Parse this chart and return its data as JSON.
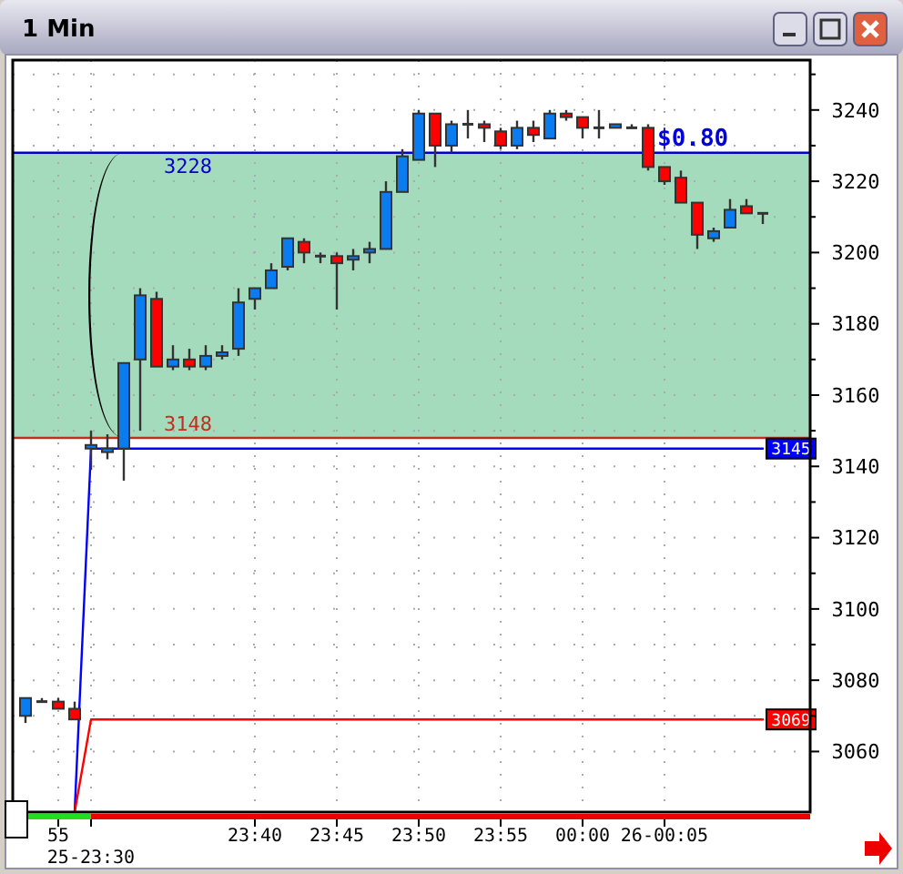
{
  "chart_data": {
    "type": "candlestick",
    "title": "1 Min",
    "categories": [
      null,
      null,
      "55",
      null,
      "25-23:30",
      null,
      null,
      null,
      null,
      null,
      null,
      null,
      null,
      null,
      "23:40",
      null,
      null,
      null,
      null,
      "23:45",
      null,
      null,
      null,
      null,
      "23:50",
      null,
      null,
      null,
      null,
      "23:55",
      null,
      null,
      null,
      null,
      "00:00",
      null,
      null,
      null,
      null,
      "26-00:05",
      null,
      null,
      null,
      null,
      null,
      null
    ],
    "ohlc": [
      [
        3070,
        3075,
        3068,
        3075
      ],
      [
        3074,
        3075,
        3074,
        3074
      ],
      [
        3074,
        3075,
        3072,
        3072
      ],
      [
        3072,
        3074,
        3069,
        3069
      ],
      [
        3145,
        3150,
        3139,
        3146
      ],
      [
        3144,
        3149,
        3142,
        3145
      ],
      [
        3145,
        3169,
        3136,
        3169
      ],
      [
        3170,
        3190,
        3150,
        3188
      ],
      [
        3187,
        3189,
        3168,
        3168
      ],
      [
        3168,
        3174,
        3167,
        3170
      ],
      [
        3170,
        3173,
        3167,
        3168
      ],
      [
        3168,
        3174,
        3167,
        3171
      ],
      [
        3171,
        3174,
        3170,
        3172
      ],
      [
        3173,
        3190,
        3171,
        3186
      ],
      [
        3187,
        3190,
        3184,
        3190
      ],
      [
        3190,
        3197,
        3190,
        3195
      ],
      [
        3196,
        3204,
        3195,
        3204
      ],
      [
        3203,
        3204,
        3197,
        3200
      ],
      [
        3199,
        3200,
        3197,
        3199
      ],
      [
        3199,
        3200,
        3184,
        3197
      ],
      [
        3198,
        3201,
        3195,
        3199
      ],
      [
        3200,
        3203,
        3197,
        3201
      ],
      [
        3201,
        3220,
        3201,
        3217
      ],
      [
        3217,
        3229,
        3217,
        3227
      ],
      [
        3226,
        3240,
        3226,
        3239
      ],
      [
        3239,
        3239,
        3224,
        3230
      ],
      [
        3230,
        3237,
        3228,
        3236
      ],
      [
        3236,
        3240,
        3232,
        3236
      ],
      [
        3236,
        3237,
        3231,
        3235
      ],
      [
        3234,
        3235,
        3229,
        3230
      ],
      [
        3230,
        3237,
        3229,
        3235
      ],
      [
        3235,
        3237,
        3231,
        3233
      ],
      [
        3232,
        3240,
        3232,
        3239
      ],
      [
        3239,
        3240,
        3237,
        3238
      ],
      [
        3238,
        3238,
        3232,
        3235
      ],
      [
        3235,
        3240,
        3232,
        3235
      ],
      [
        3235,
        3236,
        3235,
        3236
      ],
      [
        3235,
        3236,
        3235,
        3235
      ],
      [
        3235,
        3236,
        3223,
        3224
      ],
      [
        3224,
        3224,
        3219,
        3220
      ],
      [
        3221,
        3223,
        3214,
        3214
      ],
      [
        3214,
        3214,
        3201,
        3205
      ],
      [
        3204,
        3207,
        3203,
        3206
      ],
      [
        3207,
        3215,
        3207,
        3212
      ],
      [
        3213,
        3215,
        3211,
        3211
      ],
      [
        3211,
        3211,
        3208,
        3211
      ]
    ],
    "colors": [
      "#0a7cf0",
      "#333333",
      "#ff0000",
      "#ff0000",
      "#0a7cf0",
      "#0a7cf0",
      "#0a7cf0",
      "#0a7cf0",
      "#ff0000",
      "#0a7cf0",
      "#ff0000",
      "#0a7cf0",
      "#0a7cf0",
      "#0a7cf0",
      "#0a7cf0",
      "#0a7cf0",
      "#0a7cf0",
      "#ff0000",
      "#333333",
      "#ff0000",
      "#0a7cf0",
      "#0a7cf0",
      "#0a7cf0",
      "#0a7cf0",
      "#0a7cf0",
      "#ff0000",
      "#0a7cf0",
      "#333333",
      "#ff0000",
      "#ff0000",
      "#0a7cf0",
      "#ff0000",
      "#0a7cf0",
      "#ff0000",
      "#ff0000",
      "#333333",
      "#0a7cf0",
      "#333333",
      "#ff0000",
      "#ff0000",
      "#ff0000",
      "#ff0000",
      "#0a7cf0",
      "#0a7cf0",
      "#ff0000",
      "#333333"
    ],
    "series": [
      {
        "type": "line",
        "color": "#0000ff",
        "values": [
          null,
          null,
          null,
          3043,
          3145,
          3145,
          3145,
          3145,
          3145,
          3145,
          3145,
          3145,
          3145,
          3145,
          3145,
          3145,
          3145,
          3145,
          3145,
          3145,
          3145,
          3145,
          3145,
          3145,
          3145,
          3145,
          3145,
          3145,
          3145,
          3145,
          3145,
          3145,
          3145,
          3145,
          3145,
          3145,
          3145,
          3145,
          3145,
          3145,
          3145,
          3145,
          3145,
          3145,
          3145,
          3145
        ],
        "value_labels": [
          null,
          null,
          null,
          null,
          null,
          null,
          null,
          null,
          null,
          null,
          null,
          null,
          null,
          null,
          null,
          null,
          null,
          null,
          null,
          null,
          null,
          null,
          null,
          null,
          null,
          null,
          null,
          null,
          null,
          null,
          null,
          null,
          null,
          null,
          null,
          null,
          null,
          null,
          null,
          null,
          null,
          null,
          null,
          null,
          null,
          "3145"
        ]
      },
      {
        "type": "line",
        "color": "#ff0000",
        "values": [
          null,
          null,
          null,
          3043,
          3069,
          3069,
          3069,
          3069,
          3069,
          3069,
          3069,
          3069,
          3069,
          3069,
          3069,
          3069,
          3069,
          3069,
          3069,
          3069,
          3069,
          3069,
          3069,
          3069,
          3069,
          3069,
          3069,
          3069,
          3069,
          3069,
          3069,
          3069,
          3069,
          3069,
          3069,
          3069,
          3069,
          3069,
          3069,
          3069,
          3069,
          3069,
          3069,
          3069,
          3069,
          3069
        ],
        "value_labels": [
          null,
          null,
          null,
          null,
          null,
          null,
          null,
          null,
          null,
          null,
          null,
          null,
          null,
          null,
          null,
          null,
          null,
          null,
          null,
          null,
          null,
          null,
          null,
          null,
          null,
          null,
          null,
          null,
          null,
          null,
          null,
          null,
          null,
          null,
          null,
          null,
          null,
          null,
          null,
          null,
          null,
          null,
          null,
          null,
          null,
          "3069"
        ]
      }
    ],
    "ref_lines": [
      {
        "axis": "y",
        "value": 3228,
        "label": "3228",
        "color": "#0000cc"
      },
      {
        "axis": "y",
        "value": 3148,
        "label": "3148",
        "color": "#c03020"
      }
    ],
    "bands": [
      {
        "axis": "y",
        "from": 3148,
        "to": 3228,
        "color": "#9bd7b6"
      }
    ],
    "annotations": [
      {
        "text": "$0.80",
        "y": 3228
      }
    ],
    "ylim": [
      3043,
      3254
    ],
    "yticks": [
      3060,
      {
        "value": 3070,
        "label": null
      },
      3080,
      {
        "value": 3090,
        "label": null
      },
      3100,
      {
        "value": 3110,
        "label": null
      },
      3120,
      {
        "value": 3130,
        "label": null
      },
      3140,
      {
        "value": 3150,
        "label": null
      },
      3160,
      {
        "value": 3170,
        "label": null
      },
      3180,
      {
        "value": 3190,
        "label": null
      },
      3200,
      {
        "value": 3210,
        "label": null
      },
      3220,
      {
        "value": 3230,
        "label": null
      },
      3240,
      {
        "value": 3250,
        "label": null
      }
    ],
    "grid": true
  }
}
